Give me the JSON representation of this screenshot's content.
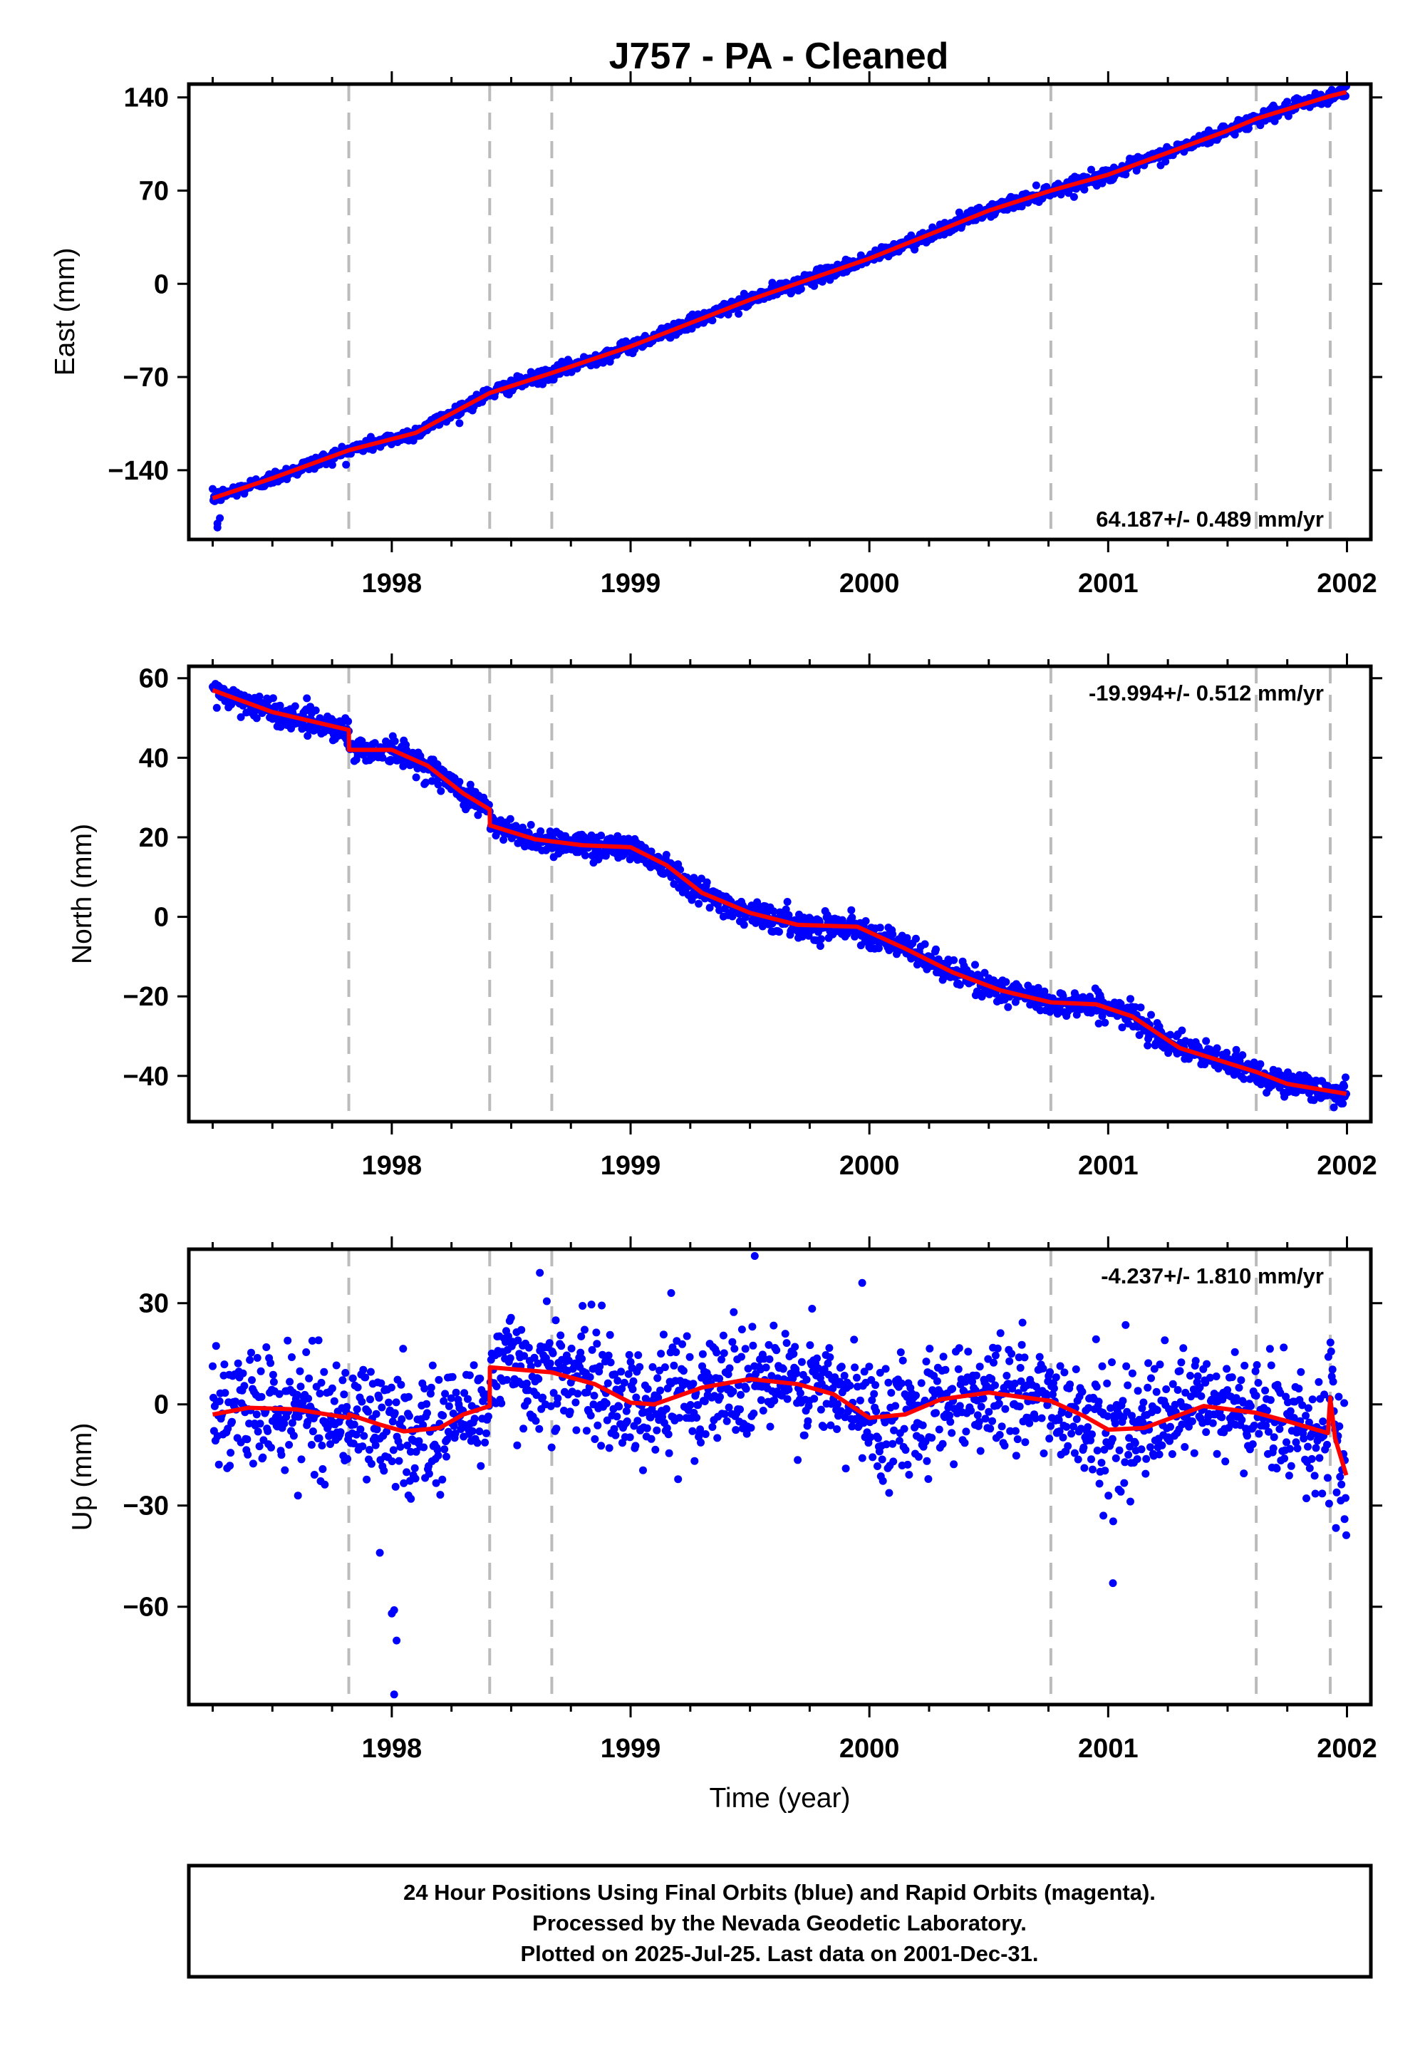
{
  "title": "J757  - PA - Cleaned",
  "colors": {
    "final_orbits": "#0000ff",
    "model": "#ff0000",
    "event_lines": "#bbbbbb",
    "frame": "#000000"
  },
  "footer": {
    "line1": "24 Hour Positions Using Final Orbits (blue) and Rapid Orbits (magenta).",
    "line2": "Processed by the Nevada Geodetic Laboratory.",
    "line3": "Plotted on 2025-Jul-25. Last data on 2001-Dec-31."
  },
  "chart_data": [
    {
      "type": "scatter",
      "panel": "east",
      "title": "J757  - PA - Cleaned",
      "ylabel": "East (mm)",
      "xlabel": "",
      "xlim": [
        1997.15,
        2002.1
      ],
      "ylim": [
        -192,
        150
      ],
      "yticks": [
        -140,
        -70,
        0,
        70,
        140
      ],
      "xticks": [
        1998,
        1999,
        2000,
        2001,
        2002
      ],
      "grid": false,
      "rate_text": "64.187+/- 0.489 mm/yr",
      "rate_position": "bottom-right",
      "event_lines": [
        1997.82,
        1998.41,
        1998.67,
        2000.76,
        2001.62,
        2001.93
      ],
      "data_span": [
        1997.25,
        2001.997
      ],
      "model_knots": [
        [
          1997.25,
          -161
        ],
        [
          1997.5,
          -146
        ],
        [
          1997.82,
          -125
        ],
        [
          1998.1,
          -112
        ],
        [
          1998.41,
          -82
        ],
        [
          1998.67,
          -67
        ],
        [
          1999.0,
          -47
        ],
        [
          1999.5,
          -12
        ],
        [
          2000.0,
          19
        ],
        [
          2000.5,
          55
        ],
        [
          2000.76,
          70
        ],
        [
          2001.0,
          82
        ],
        [
          2001.5,
          115
        ],
        [
          2001.62,
          124
        ],
        [
          2001.93,
          141
        ],
        [
          2001.997,
          144
        ]
      ],
      "outliers": [
        [
          1997.27,
          -180
        ],
        [
          1997.27,
          -183
        ],
        [
          1997.28,
          -176
        ]
      ],
      "series": [
        {
          "name": "Final Orbits (blue)",
          "scatter_sd": 2.5,
          "n_points": 1650
        },
        {
          "name": "Model fit",
          "style": "line"
        }
      ]
    },
    {
      "type": "scatter",
      "panel": "north",
      "ylabel": "North (mm)",
      "xlabel": "",
      "xlim": [
        1997.15,
        2002.1
      ],
      "ylim": [
        -51.5,
        63
      ],
      "yticks": [
        -40,
        -20,
        0,
        20,
        40,
        60
      ],
      "xticks": [
        1998,
        1999,
        2000,
        2001,
        2002
      ],
      "grid": false,
      "rate_text": "-19.994+/- 0.512 mm/yr",
      "rate_position": "top-right",
      "event_lines": [
        1997.82,
        1998.41,
        1998.67,
        2000.76,
        2001.62,
        2001.93
      ],
      "data_span": [
        1997.25,
        2001.997
      ],
      "model_knots": [
        [
          1997.25,
          57
        ],
        [
          1997.5,
          51.5
        ],
        [
          1997.82,
          47
        ],
        [
          1997.821,
          42
        ],
        [
          1998.0,
          42
        ],
        [
          1998.15,
          38
        ],
        [
          1998.3,
          31
        ],
        [
          1998.41,
          27
        ],
        [
          1998.411,
          23
        ],
        [
          1998.6,
          19.5
        ],
        [
          1998.8,
          18
        ],
        [
          1999.0,
          17.5
        ],
        [
          1999.15,
          13
        ],
        [
          1999.3,
          6
        ],
        [
          1999.5,
          1
        ],
        [
          1999.7,
          -2
        ],
        [
          1999.95,
          -2.5
        ],
        [
          2000.15,
          -8
        ],
        [
          2000.35,
          -14
        ],
        [
          2000.55,
          -18.5
        ],
        [
          2000.76,
          -21.5
        ],
        [
          2000.95,
          -22
        ],
        [
          2001.1,
          -25
        ],
        [
          2001.3,
          -33
        ],
        [
          2001.62,
          -39
        ],
        [
          2001.75,
          -42
        ],
        [
          2001.997,
          -44.5
        ]
      ],
      "outliers": [],
      "series": [
        {
          "name": "Final Orbits (blue)",
          "scatter_sd": 1.6,
          "n_points": 1650
        },
        {
          "name": "Model fit",
          "style": "line"
        }
      ]
    },
    {
      "type": "scatter",
      "panel": "up",
      "ylabel": "Up (mm)",
      "xlabel": "Time (year)",
      "xlim": [
        1997.15,
        2002.1
      ],
      "ylim": [
        -89,
        46
      ],
      "yticks": [
        -60,
        -30,
        0,
        30
      ],
      "xticks": [
        1998,
        1999,
        2000,
        2001,
        2002
      ],
      "grid": false,
      "rate_text": "-4.237+/- 1.810 mm/yr",
      "rate_position": "top-right",
      "event_lines": [
        1997.82,
        1998.41,
        1998.67,
        2000.76,
        2001.62,
        2001.93
      ],
      "data_span": [
        1997.25,
        2001.997
      ],
      "model_knots": [
        [
          1997.25,
          -3
        ],
        [
          1997.4,
          -1
        ],
        [
          1997.6,
          -1.5
        ],
        [
          1997.82,
          -4
        ],
        [
          1997.821,
          -3
        ],
        [
          1997.95,
          -6
        ],
        [
          1998.05,
          -8
        ],
        [
          1998.2,
          -7
        ],
        [
          1998.3,
          -3
        ],
        [
          1998.41,
          -0.5
        ],
        [
          1998.411,
          11
        ],
        [
          1998.67,
          9.5
        ],
        [
          1998.85,
          6
        ],
        [
          1999.0,
          0.5
        ],
        [
          1999.1,
          0
        ],
        [
          1999.3,
          5
        ],
        [
          1999.5,
          7.5
        ],
        [
          1999.7,
          6
        ],
        [
          1999.85,
          3
        ],
        [
          2000.0,
          -4
        ],
        [
          2000.15,
          -3
        ],
        [
          2000.3,
          1.5
        ],
        [
          2000.5,
          3.5
        ],
        [
          2000.76,
          1
        ],
        [
          2000.9,
          -3.5
        ],
        [
          2001.0,
          -7.5
        ],
        [
          2001.15,
          -7
        ],
        [
          2001.4,
          -0.5
        ],
        [
          2001.62,
          -2.5
        ],
        [
          2001.75,
          -5
        ],
        [
          2001.92,
          -8.5
        ],
        [
          2001.93,
          2
        ],
        [
          2001.94,
          -4
        ],
        [
          2001.95,
          -10
        ],
        [
          2001.997,
          -21
        ]
      ],
      "outliers": [
        [
          1998.0,
          -62
        ],
        [
          1998.01,
          -61
        ],
        [
          1998.02,
          -70
        ],
        [
          1998.01,
          -86
        ],
        [
          1997.95,
          -44
        ],
        [
          1998.07,
          -27
        ],
        [
          1998.08,
          -28
        ],
        [
          2001.02,
          -53
        ],
        [
          1999.52,
          44
        ],
        [
          1998.62,
          39
        ],
        [
          1999.97,
          36
        ],
        [
          1999.17,
          33
        ],
        [
          2000.98,
          -33
        ],
        [
          2001.99,
          -34
        ]
      ],
      "series": [
        {
          "name": "Final Orbits (blue)",
          "scatter_sd": 8.5,
          "n_points": 1650
        },
        {
          "name": "Model fit",
          "style": "line"
        }
      ]
    }
  ]
}
